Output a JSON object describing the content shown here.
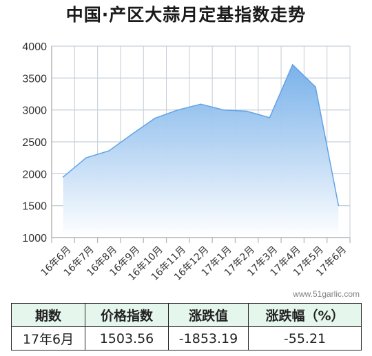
{
  "title": "中国·产区大蒜月定基指数走势",
  "watermark": "www.51garlic.com",
  "colors": {
    "area_top": "#7ab2ea",
    "line": "#62a3e6",
    "grid": "#c8d0d8",
    "axis": "#b8b8b8",
    "table_header_bg": "#e5f6ec"
  },
  "chart_data": {
    "type": "area",
    "title": "中国·产区大蒜月定基指数走势",
    "xlabel": "",
    "ylabel": "",
    "categories": [
      "16年6月",
      "16年7月",
      "16年8月",
      "16年9月",
      "16年10月",
      "16年11月",
      "16年12月",
      "17年1月",
      "17年2月",
      "17年3月",
      "17年4月",
      "17年5月",
      "17年6月"
    ],
    "y_ticks": [
      1000,
      1500,
      2000,
      2500,
      3000,
      3500,
      4000
    ],
    "ylim": [
      1000,
      4000
    ],
    "grid": true,
    "series": [
      {
        "points": [
          {
            "x": 0,
            "y": 1950
          },
          {
            "x": 1,
            "y": 2250
          },
          {
            "x": 2,
            "y": 2360
          },
          {
            "x": 3,
            "y": 2620
          },
          {
            "x": 4,
            "y": 2870
          },
          {
            "x": 5,
            "y": 3000
          },
          {
            "x": 6,
            "y": 3090
          },
          {
            "x": 7,
            "y": 3000
          },
          {
            "x": 8,
            "y": 2980
          },
          {
            "x": 9,
            "y": 2880
          },
          {
            "x": 10,
            "y": 3710
          },
          {
            "x": 11,
            "y": 3360
          },
          {
            "x": 12,
            "y": 1503.56
          }
        ]
      }
    ]
  },
  "table": {
    "headers": [
      "期数",
      "价格指数",
      "涨跌值",
      "涨跌幅（%）"
    ],
    "row": [
      "17年6月",
      "1503.56",
      "-1853.19",
      "-55.21"
    ]
  }
}
